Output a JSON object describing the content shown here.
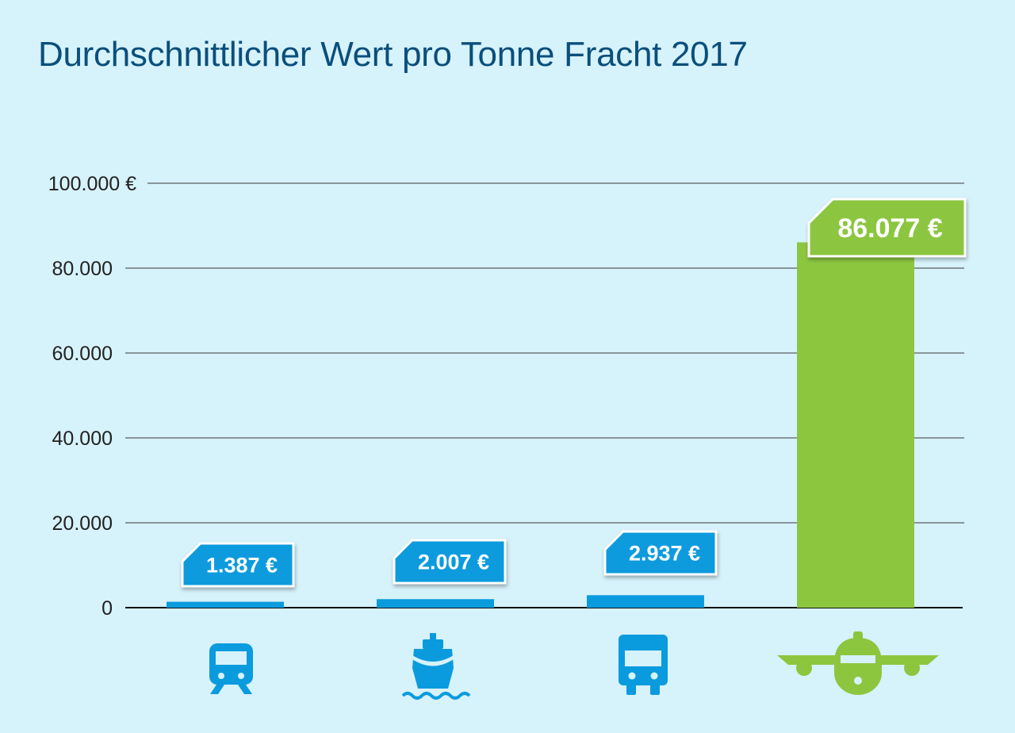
{
  "chart_data": {
    "type": "bar",
    "title": "Durchschnittlicher Wert pro Tonne Fracht 2017",
    "xlabel": "",
    "ylabel": "",
    "ylim": [
      0,
      100000
    ],
    "grid": true,
    "yticks": [
      {
        "value": 0,
        "label": "0"
      },
      {
        "value": 20000,
        "label": "20.000"
      },
      {
        "value": 40000,
        "label": "40.000"
      },
      {
        "value": 60000,
        "label": "60.000"
      },
      {
        "value": 80000,
        "label": "80.000"
      },
      {
        "value": 100000,
        "label": "100.000 €"
      }
    ],
    "categories": [
      "rail-icon",
      "ship-icon",
      "truck-icon",
      "airplane-icon"
    ],
    "values": [
      1387,
      2007,
      2937,
      86077
    ],
    "data_labels": [
      "1.387 €",
      "2.007 €",
      "2.937 €",
      "86.077 €"
    ],
    "colors": [
      "#0a9bde",
      "#0a9bde",
      "#0a9bde",
      "#8cc63f"
    ]
  },
  "colors": {
    "background": "#d6f2fb",
    "title": "#0a4f7c",
    "blue": "#0a9bde",
    "green": "#8cc63f"
  }
}
